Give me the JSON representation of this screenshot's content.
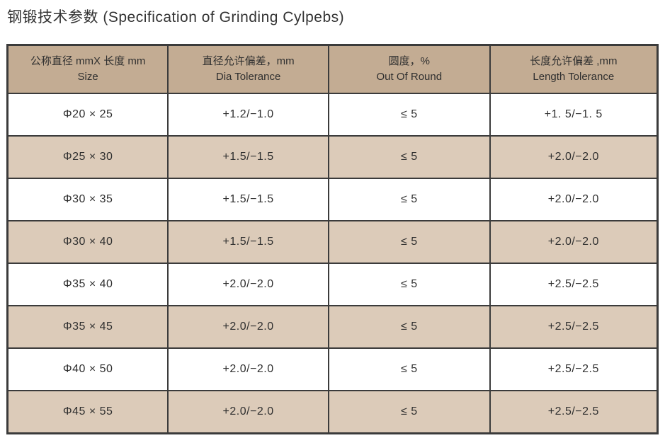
{
  "page": {
    "title": "钢锻技术参数 (Specification of Grinding Cylpebs)"
  },
  "colors": {
    "header_bg": "#c3ac93",
    "stripe_bg": "#dccbb9",
    "row_bg": "#ffffff",
    "border": "#3b3b3b",
    "text": "#2f2f2f"
  },
  "table": {
    "columns": [
      {
        "zh": "公称直径 mmX 长度 mm",
        "en": "Size"
      },
      {
        "zh": "直径允许偏差，mm",
        "en": "Dia Tolerance"
      },
      {
        "zh": "圆度，%",
        "en": "Out Of Round"
      },
      {
        "zh": "长度允许偏差 ,mm",
        "en": "Length Tolerance"
      }
    ],
    "rows": [
      [
        "Φ20 × 25",
        "+1.2/−1.0",
        "≤ 5",
        "+1. 5/−1. 5"
      ],
      [
        "Φ25 × 30",
        "+1.5/−1.5",
        "≤ 5",
        "+2.0/−2.0"
      ],
      [
        "Φ30 × 35",
        "+1.5/−1.5",
        "≤ 5",
        "+2.0/−2.0"
      ],
      [
        "Φ30 × 40",
        "+1.5/−1.5",
        "≤ 5",
        "+2.0/−2.0"
      ],
      [
        "Φ35 × 40",
        "+2.0/−2.0",
        "≤ 5",
        "+2.5/−2.5"
      ],
      [
        "Φ35 × 45",
        "+2.0/−2.0",
        "≤ 5",
        "+2.5/−2.5"
      ],
      [
        "Φ40 × 50",
        "+2.0/−2.0",
        "≤ 5",
        "+2.5/−2.5"
      ],
      [
        "Φ45 × 55",
        "+2.0/−2.0",
        "≤ 5",
        "+2.5/−2.5"
      ]
    ]
  }
}
